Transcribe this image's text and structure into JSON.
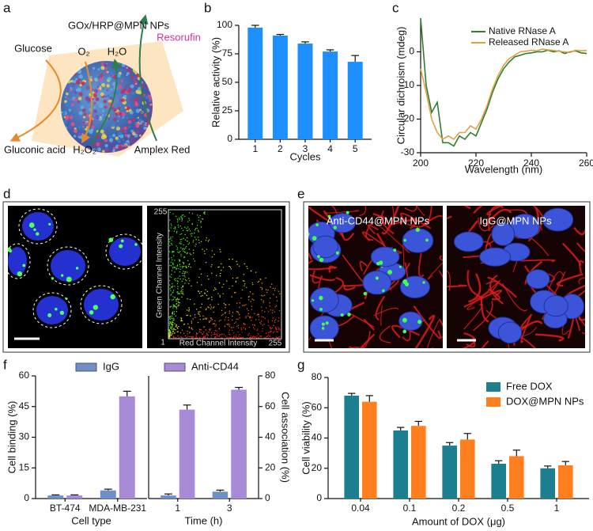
{
  "panel_labels": [
    "a",
    "b",
    "c",
    "d",
    "e",
    "f",
    "g"
  ],
  "scheme": {
    "title": "GOx/HRP@MPN NPs",
    "labels": [
      "Glucose",
      "O₂",
      "H₂O",
      "Resorufin",
      "Gluconic acid",
      "H₂O₂",
      "Amplex Red"
    ]
  },
  "micrographs": {
    "colocalization": {
      "y_axis_label": "Green Channel Intensity",
      "x_axis_label": "Red Channel Intensity",
      "axis_max_y": "255",
      "axis_min": "1",
      "axis_max_x": "255"
    },
    "binding": [
      "Anti-CD44@MPN NPs",
      "IgG@MPN NPs"
    ]
  },
  "chart_data": [
    {
      "type": "bar",
      "ylabel": "Relative activity (%)",
      "xlabel": "Cycles",
      "categories": [
        "1",
        "2",
        "3",
        "4",
        "5"
      ],
      "values": [
        98,
        91,
        84,
        77,
        68
      ],
      "errors": [
        2,
        1,
        1.5,
        1.5,
        5.5
      ],
      "color": "#1e8fff",
      "ylim": [
        0,
        100
      ],
      "yticks": [
        0,
        25,
        50,
        75,
        100
      ]
    },
    {
      "type": "line",
      "ylabel": "Circular dichroism (mdeg)",
      "xlabel": "Wavelength (nm)",
      "x": [
        200,
        202,
        204,
        206,
        208,
        210,
        212,
        214,
        216,
        218,
        220,
        222,
        224,
        226,
        228,
        230,
        232,
        234,
        236,
        238,
        240,
        242,
        244,
        246,
        248,
        250,
        252,
        254,
        256,
        258,
        260
      ],
      "xlim": [
        200,
        260
      ],
      "xticks": [
        200,
        220,
        240,
        260
      ],
      "ylim": [
        -30,
        10
      ],
      "yticks": [
        -30,
        -20,
        -10,
        0
      ],
      "legend": "upper right",
      "series": [
        {
          "name": "Native RNase A",
          "color": "#2e7d32",
          "values": [
            10,
            -10,
            -18,
            -15,
            -27,
            -27,
            -28,
            -25,
            -26,
            -24,
            -25,
            -21,
            -17,
            -12,
            -8,
            -5,
            -3,
            -1.5,
            -1,
            -0.5,
            -0.3,
            0,
            0,
            0.5,
            0,
            0.3,
            -0.5,
            0,
            0.3,
            -0.3,
            -0.5
          ]
        },
        {
          "name": "Released RNase A",
          "color": "#e0a040",
          "values": [
            -5,
            -12,
            -20,
            -24,
            -26,
            -25,
            -26,
            -24,
            -24,
            -22,
            -23,
            -20,
            -16,
            -11,
            -7,
            -4,
            -2,
            -1,
            0,
            0.2,
            0.5,
            0.3,
            0.8,
            0.6,
            0.4,
            0.2,
            0,
            -0.2,
            0.5,
            0.3,
            0.4
          ]
        }
      ]
    },
    {
      "type": "grouped-bar",
      "series": [
        {
          "name": "IgG",
          "color": "#6f8fc9"
        },
        {
          "name": "Anti-CD44",
          "color": "#a78bd6"
        }
      ],
      "panels": [
        {
          "xlabel": "Cell type",
          "ylabel": "Cell binding (%)",
          "categories": [
            "BT-474",
            "MDA-MB-231"
          ],
          "values": [
            [
              1.5,
              4
            ],
            [
              1.5,
              50
            ]
          ],
          "errors": [
            [
              0.3,
              0.6
            ],
            [
              0.3,
              2.5
            ]
          ],
          "ylim": [
            0,
            60
          ],
          "yticks": [
            0,
            15,
            30,
            45,
            60
          ],
          "axis_side": "left"
        },
        {
          "xlabel": "Time (h)",
          "ylabel": "Cell association (%)",
          "categories": [
            "1",
            "3"
          ],
          "values": [
            [
              2,
              4.5
            ],
            [
              58,
              71
            ]
          ],
          "errors": [
            [
              1,
              1
            ],
            [
              3,
              1.5
            ]
          ],
          "ylim": [
            0,
            80
          ],
          "yticks": [
            0,
            20,
            40,
            60,
            80
          ],
          "axis_side": "right"
        }
      ]
    },
    {
      "type": "grouped-bar",
      "xlabel": "Amount of DOX (μg)",
      "ylabel": "Cell viability (%)",
      "categories": [
        "0.04",
        "0.1",
        "0.2",
        "0.5",
        "1"
      ],
      "ylim": [
        0,
        80
      ],
      "yticks": [
        0,
        20,
        40,
        60,
        80
      ],
      "legend": "upper right",
      "series": [
        {
          "name": "Free DOX",
          "color": "#1b7f8f",
          "values": [
            68,
            45,
            35,
            23,
            20
          ],
          "errors": [
            1.5,
            2,
            2,
            2,
            1.5
          ]
        },
        {
          "name": "DOX@MPN NPs",
          "color": "#ff7f1e",
          "values": [
            64,
            48,
            39,
            28,
            22
          ],
          "errors": [
            4,
            3,
            4,
            4,
            2.5
          ]
        }
      ]
    }
  ]
}
